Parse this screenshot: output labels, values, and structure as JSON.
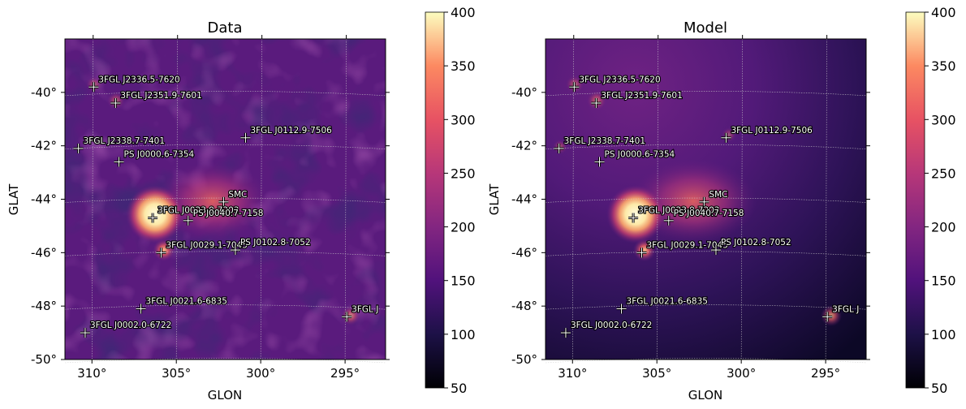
{
  "panels": [
    {
      "title": "Data",
      "xlabel": "GLON",
      "ylabel": "GLAT"
    },
    {
      "title": "Model",
      "xlabel": "GLON",
      "ylabel": "GLAT"
    }
  ],
  "chart_data": [
    {
      "type": "heatmap",
      "title": "Data",
      "xlabel": "GLON",
      "ylabel": "GLAT",
      "projection": "sky map, galactic coordinates, longitude increasing to the left",
      "xlim": [
        311.6,
        292.6
      ],
      "ylim": [
        -50,
        -38
      ],
      "xticks": [
        310,
        305,
        300,
        295
      ],
      "xtick_labels": [
        "310°",
        "305°",
        "300°",
        "295°"
      ],
      "yticks": [
        -40,
        -42,
        -44,
        -46,
        -48,
        -50
      ],
      "ytick_labels": [
        "-40°",
        "-42°",
        "-44°",
        "-46°",
        "-48°",
        "-50°"
      ],
      "grid": true,
      "colormap": "magma",
      "colorbar": {
        "min": 50,
        "max": 400,
        "ticks": [
          50,
          100,
          150,
          200,
          250,
          300,
          350,
          400
        ]
      },
      "sources": [
        {
          "name": "3FGL J2336.5-7620",
          "glon": 309.9,
          "glat": -39.8
        },
        {
          "name": "3FGL J2351.9-7601",
          "glon": 308.6,
          "glat": -40.4
        },
        {
          "name": "3FGL J0112.9-7506",
          "glon": 300.9,
          "glat": -41.7
        },
        {
          "name": "3FGL J2338.7-7401",
          "glon": 310.8,
          "glat": -42.1
        },
        {
          "name": "PS J0000.6-7354",
          "glon": 308.4,
          "glat": -42.6
        },
        {
          "name": "SMC",
          "glon": 302.2,
          "glat": -44.1
        },
        {
          "name": "3FGL J0023.9-7203",
          "glon": 306.4,
          "glat": -44.7
        },
        {
          "name": "PS J0040.7-7158",
          "glon": 304.3,
          "glat": -44.8
        },
        {
          "name": "3FGL J0029.1-7045",
          "glon": 305.9,
          "glat": -46.0
        },
        {
          "name": "PS J0102.8-7052",
          "glon": 301.5,
          "glat": -45.9
        },
        {
          "name": "3FGL J0021.6-6835",
          "glon": 307.1,
          "glat": -48.1
        },
        {
          "name": "3FGL J0002.0-6722",
          "glon": 310.4,
          "glat": -49.0
        },
        {
          "name": "3FGL J",
          "glon": 294.9,
          "glat": -48.4
        }
      ],
      "intensity_peaks": [
        {
          "location": "3FGL J0023.9-7203",
          "value": 400
        },
        {
          "location": "SMC",
          "value": 250
        },
        {
          "location": "3FGL J0029.1-7045",
          "value": 320
        }
      ]
    },
    {
      "type": "heatmap",
      "title": "Model",
      "xlabel": "GLON",
      "ylabel": "GLAT",
      "projection": "sky map, galactic coordinates, longitude increasing to the left",
      "xlim": [
        311.6,
        292.6
      ],
      "ylim": [
        -50,
        -38
      ],
      "xticks": [
        310,
        305,
        300,
        295
      ],
      "xtick_labels": [
        "310°",
        "305°",
        "300°",
        "295°"
      ],
      "yticks": [
        -40,
        -42,
        -44,
        -46,
        -48,
        -50
      ],
      "ytick_labels": [
        "-40°",
        "-42°",
        "-44°",
        "-46°",
        "-48°",
        "-50°"
      ],
      "grid": true,
      "colormap": "magma",
      "colorbar": {
        "min": 50,
        "max": 400,
        "ticks": [
          50,
          100,
          150,
          200,
          250,
          300,
          350,
          400
        ]
      },
      "sources": [
        {
          "name": "3FGL J2336.5-7620",
          "glon": 309.9,
          "glat": -39.8
        },
        {
          "name": "3FGL J2351.9-7601",
          "glon": 308.6,
          "glat": -40.4
        },
        {
          "name": "3FGL J0112.9-7506",
          "glon": 300.9,
          "glat": -41.7
        },
        {
          "name": "3FGL J2338.7-7401",
          "glon": 310.8,
          "glat": -42.1
        },
        {
          "name": "PS J0000.6-7354",
          "glon": 308.4,
          "glat": -42.6
        },
        {
          "name": "SMC",
          "glon": 302.2,
          "glat": -44.1
        },
        {
          "name": "3FGL J0023.9-7203",
          "glon": 306.4,
          "glat": -44.7
        },
        {
          "name": "PS J0040.7-7158",
          "glon": 304.3,
          "glat": -44.8
        },
        {
          "name": "3FGL J0029.1-7045",
          "glon": 305.9,
          "glat": -46.0
        },
        {
          "name": "PS J0102.8-7052",
          "glon": 301.5,
          "glat": -45.9
        },
        {
          "name": "3FGL J0021.6-6835",
          "glon": 307.1,
          "glat": -48.1
        },
        {
          "name": "3FGL J0002.0-6722",
          "glon": 310.4,
          "glat": -49.0
        },
        {
          "name": "3FGL J",
          "glon": 294.9,
          "glat": -48.4
        }
      ],
      "intensity_peaks": [
        {
          "location": "3FGL J0023.9-7203",
          "value": 400
        },
        {
          "location": "SMC",
          "value": 260
        },
        {
          "location": "3FGL J0029.1-7045",
          "value": 330
        }
      ]
    }
  ]
}
